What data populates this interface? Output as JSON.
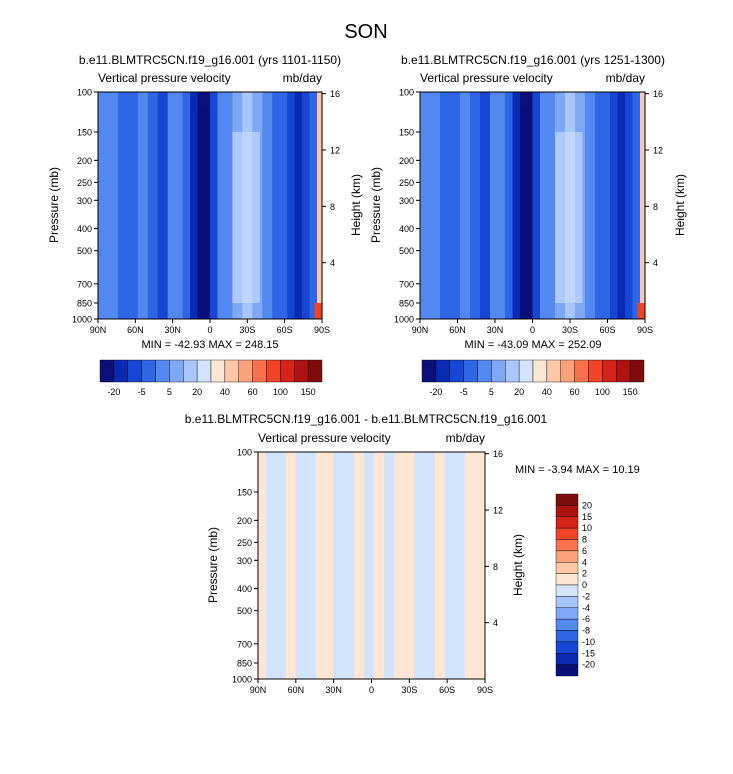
{
  "season_title": "SON",
  "colors": {
    "abs_palette": [
      "#0a0f7a",
      "#0a2ab4",
      "#1846d4",
      "#2f66e6",
      "#5388f0",
      "#7ea8f6",
      "#a9c6fa",
      "#d2e3fc",
      "#fde7d4",
      "#fcc8a8",
      "#fba27c",
      "#f7724c",
      "#ef4428",
      "#d5221a",
      "#ae1212",
      "#7f0c0c"
    ],
    "diff_palette": [
      "#0a0f7a",
      "#0a2ab4",
      "#1846d4",
      "#2f66e6",
      "#5388f0",
      "#7ea8f6",
      "#a9c6fa",
      "#d2e3fc",
      "#fde7d4",
      "#fcc8a8",
      "#fba27c",
      "#f7724c",
      "#ef4428",
      "#d5221a",
      "#ae1212",
      "#7f0c0c"
    ]
  },
  "chart_data": [
    {
      "type": "heatmap",
      "title": "b.e11.BLMTRC5CN.f19_g16.001 (yrs 1101-1150)",
      "subtitle_left": "Vertical pressure velocity",
      "subtitle_right": "mb/day",
      "ylabel": "Pressure (mb)",
      "ylabel_right": "Height (km)",
      "x_ticks": [
        "90N",
        "60N",
        "30N",
        "0",
        "30S",
        "60S",
        "90S"
      ],
      "y_ticks": [
        "100",
        "150",
        "200",
        "250",
        "300",
        "400",
        "500",
        "700",
        "850",
        "1000"
      ],
      "y_right_ticks": [
        "16",
        "12",
        "8",
        "4"
      ],
      "stats": "MIN = -42.93  MAX = 248.15",
      "xlim": [
        90,
        -90
      ],
      "ylim": [
        100,
        1000
      ],
      "colorbar_labels": [
        "-20",
        "-5",
        "5",
        "20",
        "40",
        "60",
        "100",
        "150"
      ],
      "columns": [
        {
          "lat": 90,
          "w": -2
        },
        {
          "lat": 82,
          "w": 0
        },
        {
          "lat": 74,
          "w": -5
        },
        {
          "lat": 66,
          "w": -3
        },
        {
          "lat": 58,
          "w": -1
        },
        {
          "lat": 50,
          "w": -3
        },
        {
          "lat": 42,
          "w": -8
        },
        {
          "lat": 34,
          "w": -2
        },
        {
          "lat": 28,
          "w": 1
        },
        {
          "lat": 22,
          "w": -4
        },
        {
          "lat": 16,
          "w": -12
        },
        {
          "lat": 10,
          "w": -25
        },
        {
          "lat": 5,
          "w": -28
        },
        {
          "lat": 0,
          "w": -6
        },
        {
          "lat": -6,
          "w": -2
        },
        {
          "lat": -12,
          "w": 2
        },
        {
          "lat": -18,
          "w": 8
        },
        {
          "lat": -26,
          "w": 12
        },
        {
          "lat": -34,
          "w": 7
        },
        {
          "lat": -42,
          "w": 1
        },
        {
          "lat": -50,
          "w": -4
        },
        {
          "lat": -56,
          "w": -3
        },
        {
          "lat": -62,
          "w": -8
        },
        {
          "lat": -68,
          "w": -18
        },
        {
          "lat": -74,
          "w": -6
        },
        {
          "lat": -80,
          "w": -4
        },
        {
          "lat": -86,
          "w": 40
        },
        {
          "lat": -90,
          "w": 60
        }
      ]
    },
    {
      "type": "heatmap",
      "title": "b.e11.BLMTRC5CN.f19_g16.001 (yrs 1251-1300)",
      "subtitle_left": "Vertical pressure velocity",
      "subtitle_right": "mb/day",
      "ylabel": "Pressure (mb)",
      "ylabel_right": "Height (km)",
      "x_ticks": [
        "90N",
        "60N",
        "30N",
        "0",
        "30S",
        "60S",
        "90S"
      ],
      "y_ticks": [
        "100",
        "150",
        "200",
        "250",
        "300",
        "400",
        "500",
        "700",
        "850",
        "1000"
      ],
      "y_right_ticks": [
        "16",
        "12",
        "8",
        "4"
      ],
      "stats": "MIN = -43.09  MAX = 252.09",
      "xlim": [
        90,
        -90
      ],
      "ylim": [
        100,
        1000
      ],
      "colorbar_labels": [
        "-20",
        "-5",
        "5",
        "20",
        "40",
        "60",
        "100",
        "150"
      ],
      "columns": [
        {
          "lat": 90,
          "w": -2
        },
        {
          "lat": 82,
          "w": 0
        },
        {
          "lat": 74,
          "w": -5
        },
        {
          "lat": 66,
          "w": -3
        },
        {
          "lat": 58,
          "w": -1
        },
        {
          "lat": 50,
          "w": -3
        },
        {
          "lat": 42,
          "w": -8
        },
        {
          "lat": 34,
          "w": -2
        },
        {
          "lat": 28,
          "w": 1
        },
        {
          "lat": 22,
          "w": -4
        },
        {
          "lat": 16,
          "w": -12
        },
        {
          "lat": 10,
          "w": -25
        },
        {
          "lat": 5,
          "w": -28
        },
        {
          "lat": 0,
          "w": -6
        },
        {
          "lat": -6,
          "w": -2
        },
        {
          "lat": -12,
          "w": 2
        },
        {
          "lat": -18,
          "w": 8
        },
        {
          "lat": -26,
          "w": 12
        },
        {
          "lat": -34,
          "w": 7
        },
        {
          "lat": -42,
          "w": 1
        },
        {
          "lat": -50,
          "w": -4
        },
        {
          "lat": -56,
          "w": -3
        },
        {
          "lat": -62,
          "w": -8
        },
        {
          "lat": -68,
          "w": -18
        },
        {
          "lat": -74,
          "w": -6
        },
        {
          "lat": -80,
          "w": -4
        },
        {
          "lat": -86,
          "w": 40
        },
        {
          "lat": -90,
          "w": 60
        }
      ]
    },
    {
      "type": "heatmap",
      "title": "b.e11.BLMTRC5CN.f19_g16.001 - b.e11.BLMTRC5CN.f19_g16.001",
      "subtitle_left": "Vertical pressure velocity",
      "subtitle_right": "mb/day",
      "ylabel": "Pressure (mb)",
      "ylabel_right": "Height (km)",
      "x_ticks": [
        "90N",
        "60N",
        "30N",
        "0",
        "30S",
        "60S",
        "90S"
      ],
      "y_ticks": [
        "100",
        "150",
        "200",
        "250",
        "300",
        "400",
        "500",
        "700",
        "850",
        "1000"
      ],
      "y_right_ticks": [
        "16",
        "12",
        "8",
        "4"
      ],
      "stats": "MIN = -3.94  MAX = 10.19",
      "xlim": [
        90,
        -90
      ],
      "ylim": [
        100,
        1000
      ],
      "colorbar_labels": [
        "20",
        "15",
        "10",
        "8",
        "6",
        "4",
        "2",
        "0",
        "-2",
        "-4",
        "-6",
        "-8",
        "-10",
        "-15",
        "-20"
      ],
      "columns": [
        {
          "lat": 90,
          "w": 0.5
        },
        {
          "lat": 84,
          "w": -0.5
        },
        {
          "lat": 76,
          "w": -0.5
        },
        {
          "lat": 68,
          "w": 0.5
        },
        {
          "lat": 60,
          "w": -0.5
        },
        {
          "lat": 52,
          "w": -0.5
        },
        {
          "lat": 44,
          "w": 0.5
        },
        {
          "lat": 38,
          "w": 0.5
        },
        {
          "lat": 30,
          "w": -0.5
        },
        {
          "lat": 22,
          "w": -0.5
        },
        {
          "lat": 14,
          "w": 0.5
        },
        {
          "lat": 6,
          "w": -0.5
        },
        {
          "lat": -2,
          "w": 0.5
        },
        {
          "lat": -10,
          "w": -0.5
        },
        {
          "lat": -18,
          "w": 0.5
        },
        {
          "lat": -26,
          "w": 0.5
        },
        {
          "lat": -34,
          "w": -0.5
        },
        {
          "lat": -42,
          "w": -0.5
        },
        {
          "lat": -50,
          "w": 0.5
        },
        {
          "lat": -58,
          "w": -0.5
        },
        {
          "lat": -66,
          "w": -0.5
        },
        {
          "lat": -74,
          "w": 0.5
        },
        {
          "lat": -82,
          "w": 0.5
        },
        {
          "lat": -90,
          "w": -0.5
        }
      ]
    }
  ]
}
